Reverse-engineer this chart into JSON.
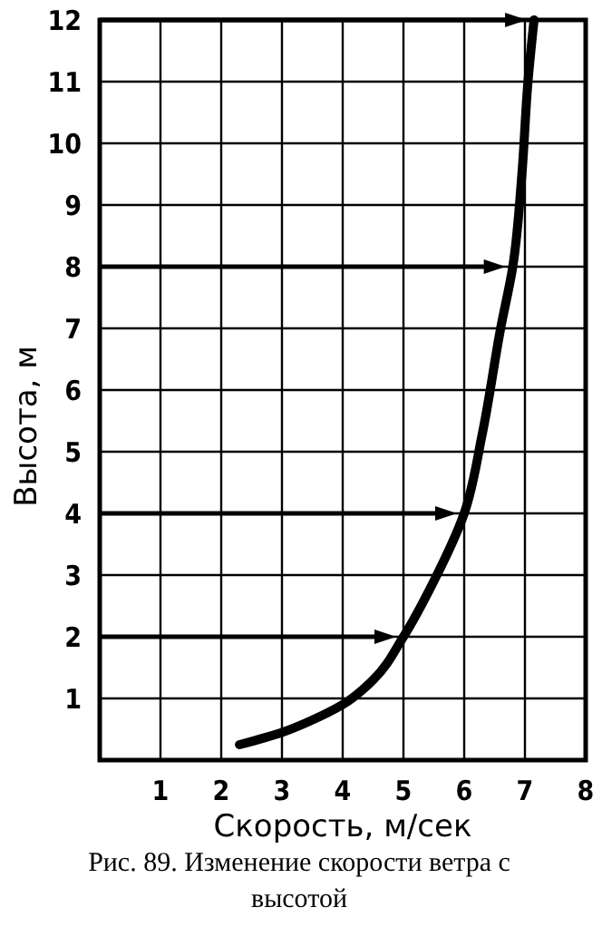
{
  "chart_data": {
    "type": "line",
    "xlabel": "Скорость, м/сек",
    "ylabel": "Высота, м",
    "annotations": [
      "Рис. 89. Изменение скорости ветра с высотой"
    ],
    "x": [
      2.3,
      3,
      3.5,
      4,
      4.5,
      5,
      5.5,
      6,
      6.3,
      6.6,
      6.8,
      6.95,
      7.05,
      7.15
    ],
    "series": [
      {
        "color": "#000000",
        "values": [
          0.25,
          0.45,
          0.65,
          0.9,
          1.3,
          2,
          2.9,
          4,
          5.3,
          7,
          8,
          9.5,
          11,
          12
        ]
      }
    ],
    "xlim": [
      0,
      8
    ],
    "ylim": [
      0,
      12
    ],
    "xticks": [
      {
        "value": 0,
        "label": null
      },
      1,
      2,
      3,
      4,
      5,
      6,
      7,
      8
    ],
    "yticks": [
      {
        "value": 0,
        "label": null
      },
      1,
      2,
      3,
      4,
      5,
      6,
      7,
      8,
      9,
      10,
      11,
      12
    ],
    "grid": true,
    "marker": "none",
    "line_style": "solid",
    "ref_lines": [
      {
        "axis": "y",
        "value": 2
      },
      {
        "axis": "y",
        "value": 4
      },
      {
        "axis": "y",
        "value": 8
      },
      {
        "axis": "y",
        "value": 12
      }
    ]
  }
}
